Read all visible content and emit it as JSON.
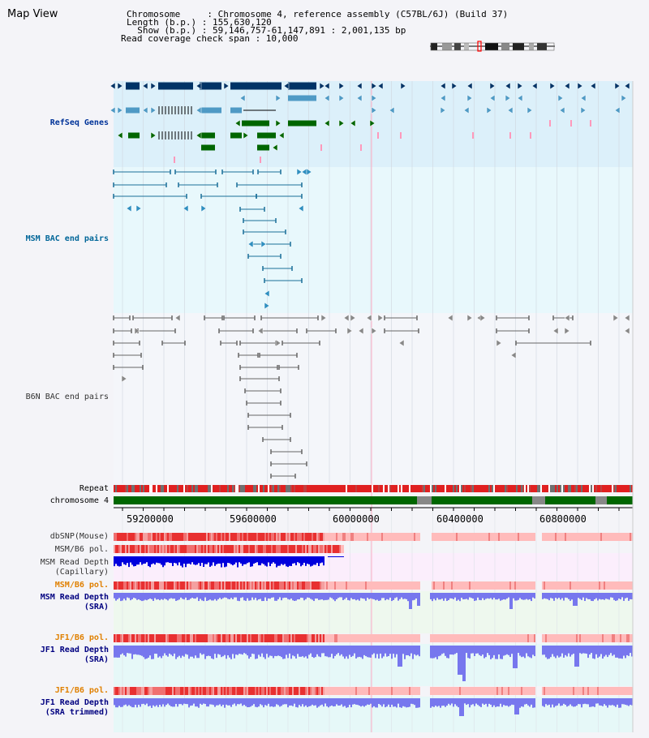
{
  "title": "Map View",
  "header": {
    "line1": "Chromosome     : Chromosome 4, reference assembly (C57BL/6J) (Build 37)",
    "line2": "Length (b.p.) : 155,630,120",
    "line3": "  Show (b.p.) : 59,146,757-61,147,891 : 2,001,135 bp",
    "line4": "Read coverage check span : 10,000"
  },
  "tracks": {
    "refseq": "RefSeq Genes",
    "msm_bac": "MSM BAC end pairs",
    "b6n_bac": "B6N BAC end pairs",
    "repeat": "Repeat",
    "chromosome": "chromosome 4",
    "dbsnp": "dbSNP(Mouse)",
    "msm_b6_pol_1": "MSM/B6 pol.",
    "msm_read_depth_cap_1": "MSM Read Depth",
    "msm_read_depth_cap_2": "(Capillary)",
    "msm_b6_pol_2": "MSM/B6 pol.",
    "msm_read_depth_sra_1": "MSM Read Depth",
    "msm_read_depth_sra_2": "(SRA)",
    "jf1_b6_pol_1": "JF1/B6 pol.",
    "jf1_read_depth_sra_1": "JF1 Read Depth",
    "jf1_read_depth_sra_2": "(SRA)",
    "jf1_b6_pol_2": "JF1/B6 pol.",
    "jf1_read_depth_trim_1": "JF1 Read Depth",
    "jf1_read_depth_trim_2": "(SRA trimmed)"
  },
  "axis": {
    "ticks": [
      "59200000",
      "59600000",
      "60000000",
      "60400000",
      "60800000"
    ]
  },
  "colors": {
    "refseq_bg": "#dcf0fa",
    "bac_bg": "#e8f8fc",
    "b6n_bg": "#f4f6fa",
    "gene_navy": "#003366",
    "gene_teal": "#4f9ac5",
    "gene_green": "#006600",
    "pink": "#ff99bb",
    "repeat_red": "#e02020",
    "chrom_green": "#006600",
    "snp_pink": "#ffbbbb",
    "depth_blue": "#0000dd",
    "depth_light": "#7777ee"
  }
}
